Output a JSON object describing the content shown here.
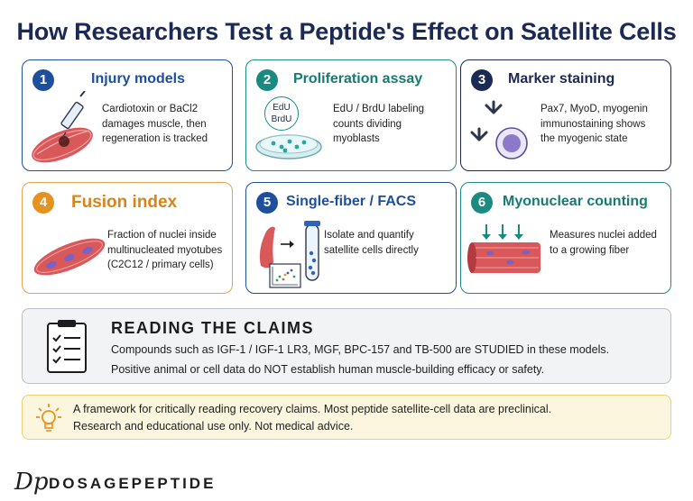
{
  "title": "How Researchers Test a Peptide's Effect on Satellite Cells",
  "cards": [
    {
      "num": "1",
      "title": "Injury models",
      "desc": [
        "Cardiotoxin or BaCl2",
        "damages muscle, then",
        "regeneration is tracked"
      ],
      "accent": "#1e4f9c",
      "title_color": "#1e4f9c",
      "border": "#1e4f9c"
    },
    {
      "num": "2",
      "title": "Proliferation assay",
      "desc": [
        "EdU / BrdU labeling",
        "counts dividing",
        "myoblasts"
      ],
      "accent": "#1b8a80",
      "title_color": "#177a70",
      "border": "#1b8a80",
      "tag": [
        "EdU",
        "BrdU"
      ]
    },
    {
      "num": "3",
      "title": "Marker staining",
      "desc": [
        "Pax7, MyoD, myogenin",
        "immunostaining shows",
        "the myogenic state"
      ],
      "accent": "#1b2a55",
      "title_color": "#1b2a55",
      "border": "#1b2a55"
    },
    {
      "num": "4",
      "title": "Fusion index",
      "desc": [
        "Fraction of nuclei inside",
        "multinucleated myotubes",
        "(C2C12 / primary cells)"
      ],
      "accent": "#e6921f",
      "title_color": "#d9841a",
      "border": "#e6a14a"
    },
    {
      "num": "5",
      "title": "Single-fiber / FACS",
      "desc": [
        "Isolate and quantify",
        "satellite cells directly"
      ],
      "accent": "#1e4f9c",
      "title_color": "#1e4f9c",
      "border": "#1e4f9c"
    },
    {
      "num": "6",
      "title": "Myonuclear counting",
      "desc": [
        "Measures nuclei added",
        "to a growing fiber"
      ],
      "accent": "#1b8a80",
      "title_color": "#177a70",
      "border": "#1b8a80"
    }
  ],
  "claims": {
    "heading": "READING THE CLAIMS",
    "line1": "Compounds such as IGF-1 / IGF-1 LR3, MGF, BPC-157 and TB-500 are STUDIED in these models.",
    "line2": "Positive animal or cell data do NOT establish human muscle-building efficacy or safety."
  },
  "note": {
    "line1": "A framework for critically reading recovery claims. Most peptide satellite-cell data are preclinical.",
    "line2": "Research and educational use only. Not medical advice."
  },
  "brand": {
    "mark": "Dp",
    "name": "DOSAGEPEPTIDE"
  }
}
